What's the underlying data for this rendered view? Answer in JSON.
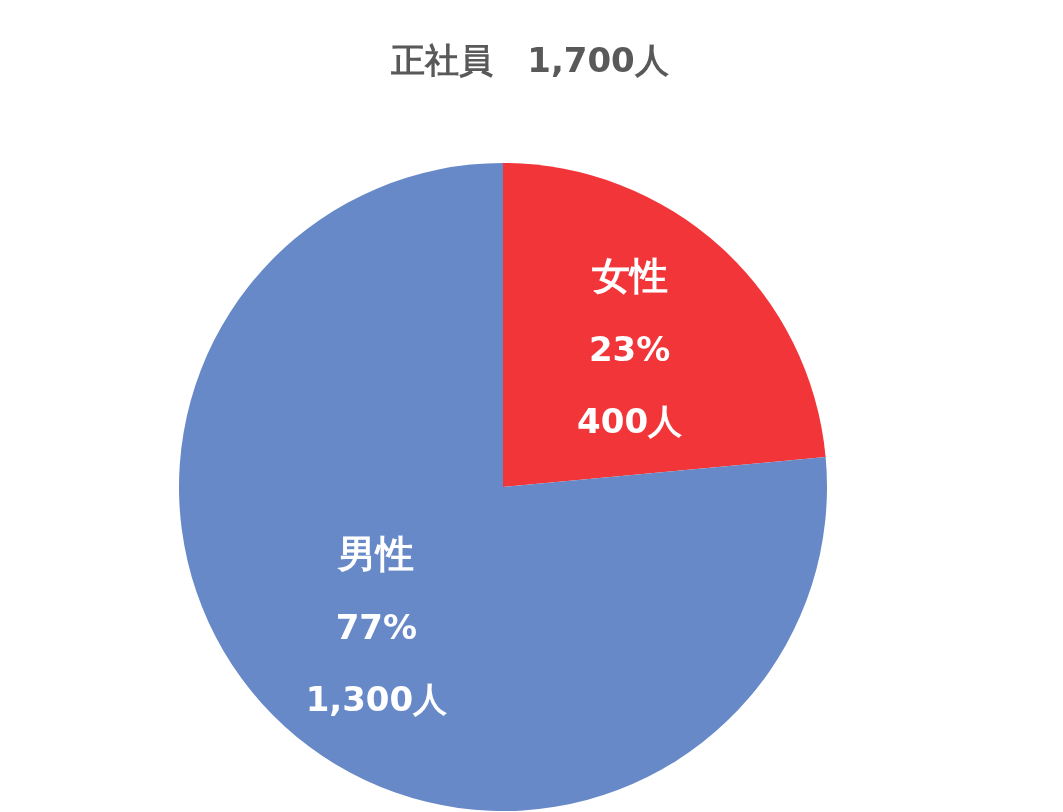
{
  "chart_data": {
    "type": "pie",
    "title": "正社員　1,700人",
    "categories": [
      "女性",
      "男性"
    ],
    "values": [
      400,
      1300
    ],
    "colors": [
      "#f23539",
      "#6789c8"
    ],
    "value_labels": [
      "23%\n400人",
      "77%\n1,300人"
    ]
  }
}
